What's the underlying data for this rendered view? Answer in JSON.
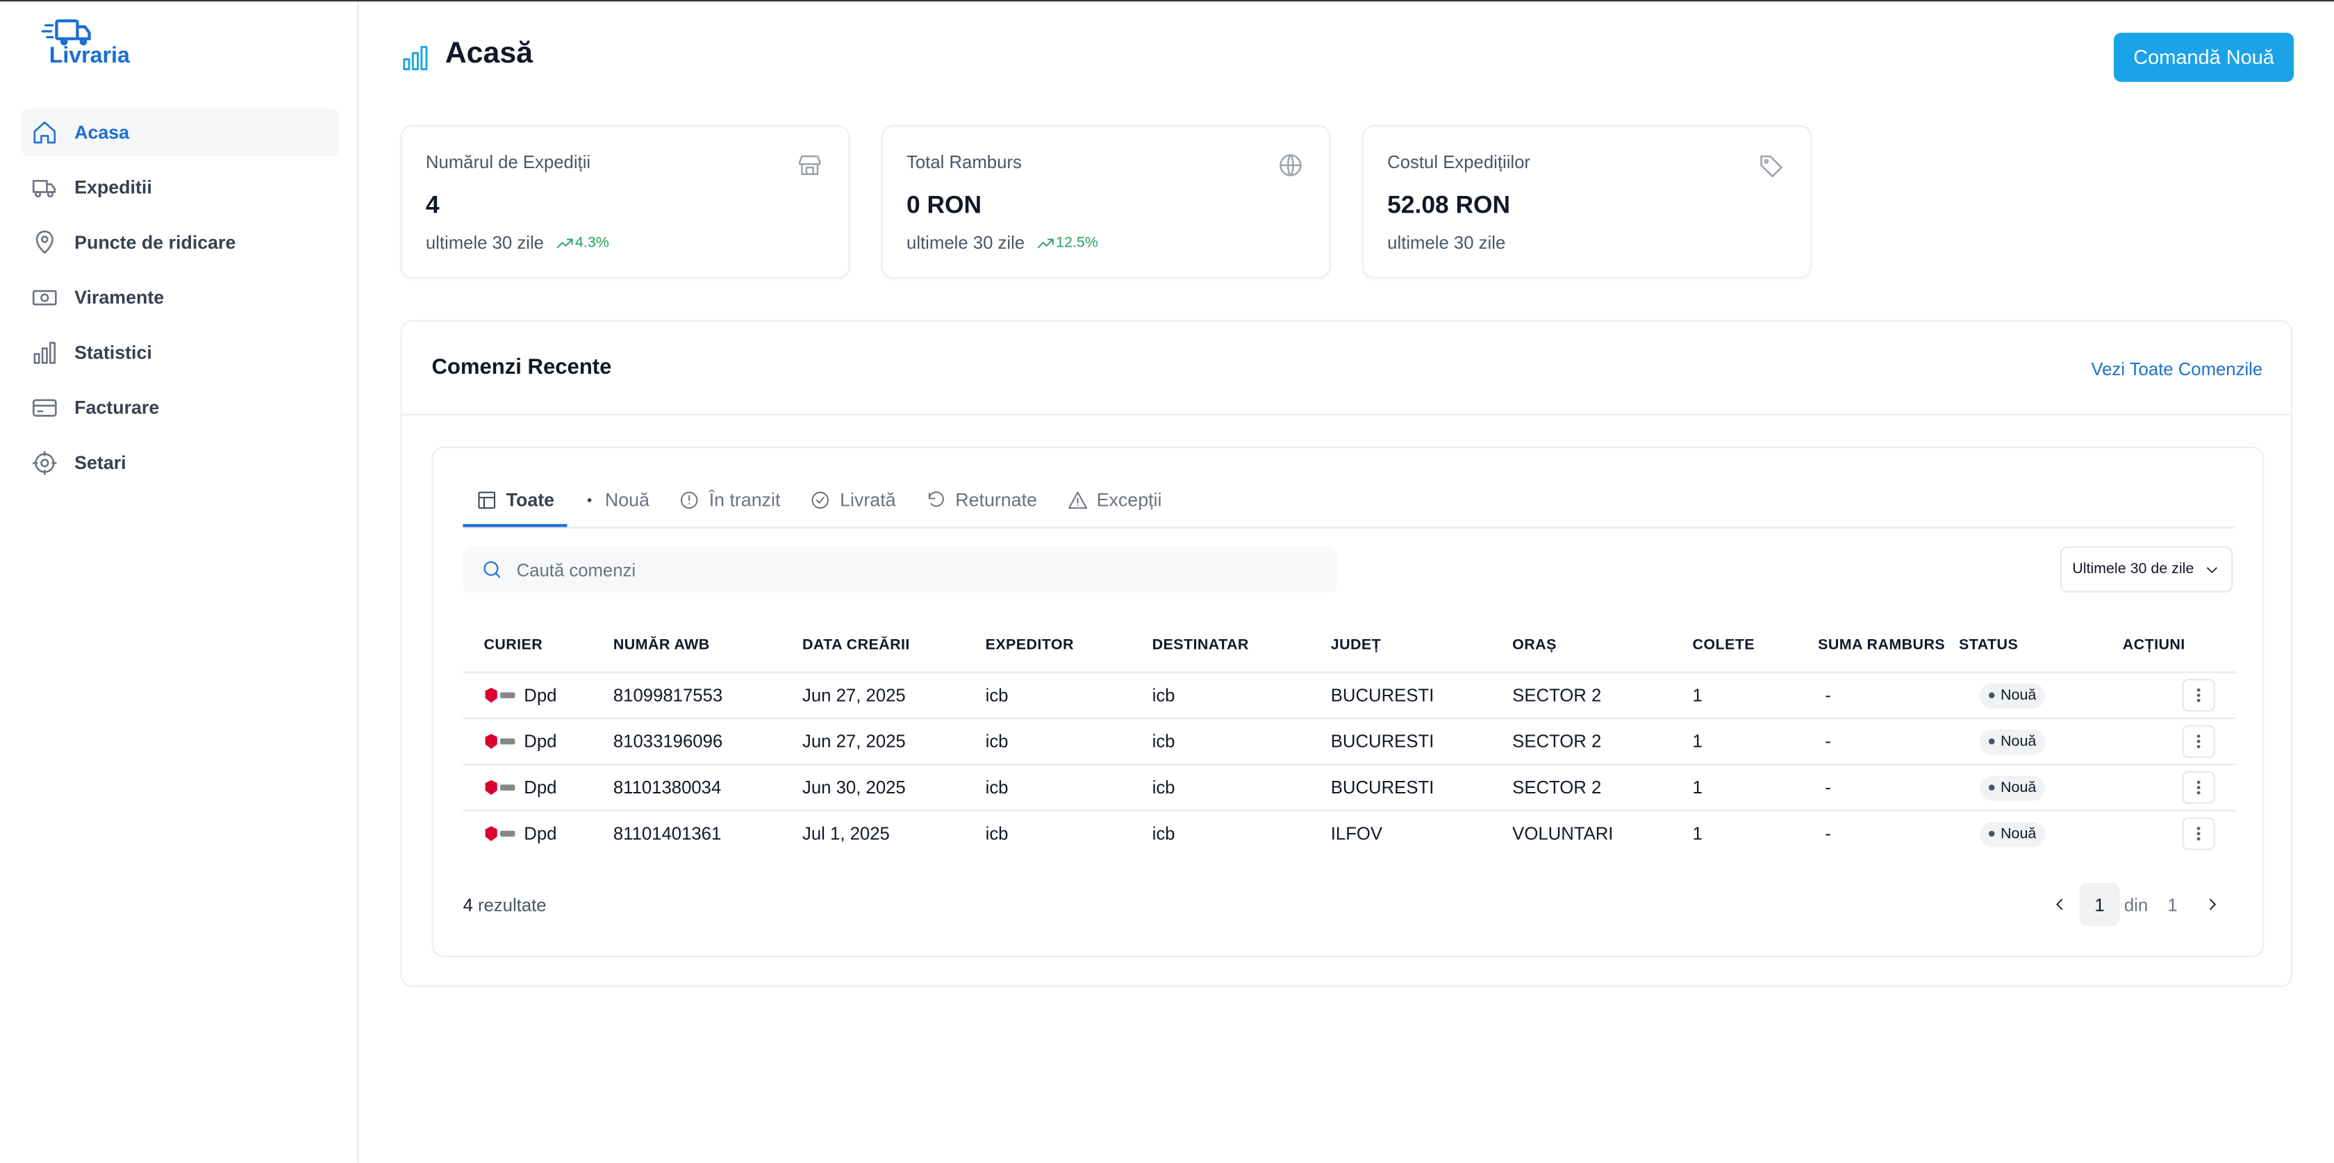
{
  "brand": "Livraria",
  "nav": [
    "Acasa",
    "Expeditii",
    "Puncte de ridicare",
    "Viramente",
    "Statistici",
    "Facturare",
    "Setari"
  ],
  "header": {
    "title": "Acasă",
    "button": "Comandă Nouă"
  },
  "stats": [
    {
      "label": "Numărul de Expediții",
      "value": "4",
      "period": "ultimele 30 zile",
      "change": "4.3%"
    },
    {
      "label": "Total Ramburs",
      "value": "0 RON",
      "period": "ultimele 30 zile",
      "change": "12.5%"
    },
    {
      "label": "Costul Expedițiilor",
      "value": "52.08 RON",
      "period": "ultimele 30 zile"
    }
  ],
  "orders": {
    "title": "Comenzi Recente",
    "link": "Vezi Toate Comenzile",
    "tabs": [
      "Toate",
      "Nouă",
      "În tranzit",
      "Livrată",
      "Returnate",
      "Excepții"
    ],
    "search_placeholder": "Caută comenzi",
    "period_filter": "Ultimele 30 de zile",
    "columns": [
      "CURIER",
      "NUMĂR AWB",
      "DATA CREĂRII",
      "EXPEDITOR",
      "DESTINATAR",
      "JUDEȚ",
      "ORAȘ",
      "COLETE",
      "SUMA RAMBURS",
      "STATUS",
      "ACȚIUNI"
    ],
    "rows": [
      [
        "Dpd",
        "81099817553",
        "Jun 27, 2025",
        "icb",
        "icb",
        "BUCURESTI",
        "SECTOR 2",
        "1",
        "-",
        "Nouă"
      ],
      [
        "Dpd",
        "81033196096",
        "Jun 27, 2025",
        "icb",
        "icb",
        "BUCURESTI",
        "SECTOR 2",
        "1",
        "-",
        "Nouă"
      ],
      [
        "Dpd",
        "81101380034",
        "Jun 30, 2025",
        "icb",
        "icb",
        "BUCURESTI",
        "SECTOR 2",
        "1",
        "-",
        "Nouă"
      ],
      [
        "Dpd",
        "81101401361",
        "Jul 1, 2025",
        "icb",
        "icb",
        "ILFOV",
        "VOLUNTARI",
        "1",
        "-",
        "Nouă"
      ]
    ],
    "results_count": "4",
    "results_label": "rezultate",
    "page": "1",
    "page_of": "din",
    "page_total": "1"
  }
}
